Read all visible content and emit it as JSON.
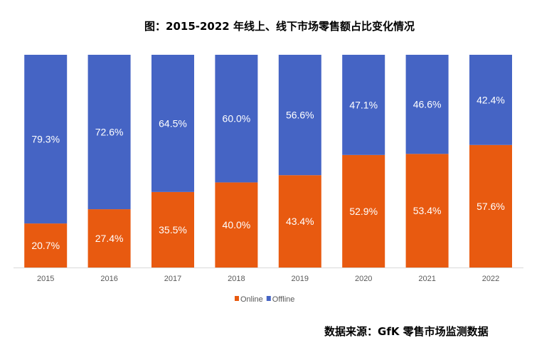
{
  "chart_data": {
    "type": "bar",
    "stacked": true,
    "title": "图：2015-2022 年线上、线下市场零售额占比变化情况",
    "categories": [
      "2015",
      "2016",
      "2017",
      "2018",
      "2019",
      "2020",
      "2021",
      "2022"
    ],
    "series": [
      {
        "name": "Online",
        "color": "#E85A10",
        "values": [
          20.7,
          27.4,
          35.5,
          40.0,
          43.4,
          52.9,
          53.4,
          57.6
        ],
        "labels": [
          "20.7%",
          "27.4%",
          "35.5%",
          "40.0%",
          "43.4%",
          "52.9%",
          "53.4%",
          "57.6%"
        ]
      },
      {
        "name": "Offline",
        "color": "#4564C4",
        "values": [
          79.3,
          72.6,
          64.5,
          60.0,
          56.6,
          47.1,
          46.6,
          42.4
        ],
        "labels": [
          "79.3%",
          "72.6%",
          "64.5%",
          "60.0%",
          "56.6%",
          "47.1%",
          "46.6%",
          "42.4%"
        ]
      }
    ],
    "ylim": [
      0,
      100
    ],
    "grid": false,
    "legend": "bottom",
    "source": "数据来源：GfK 零售市场监测数据"
  }
}
